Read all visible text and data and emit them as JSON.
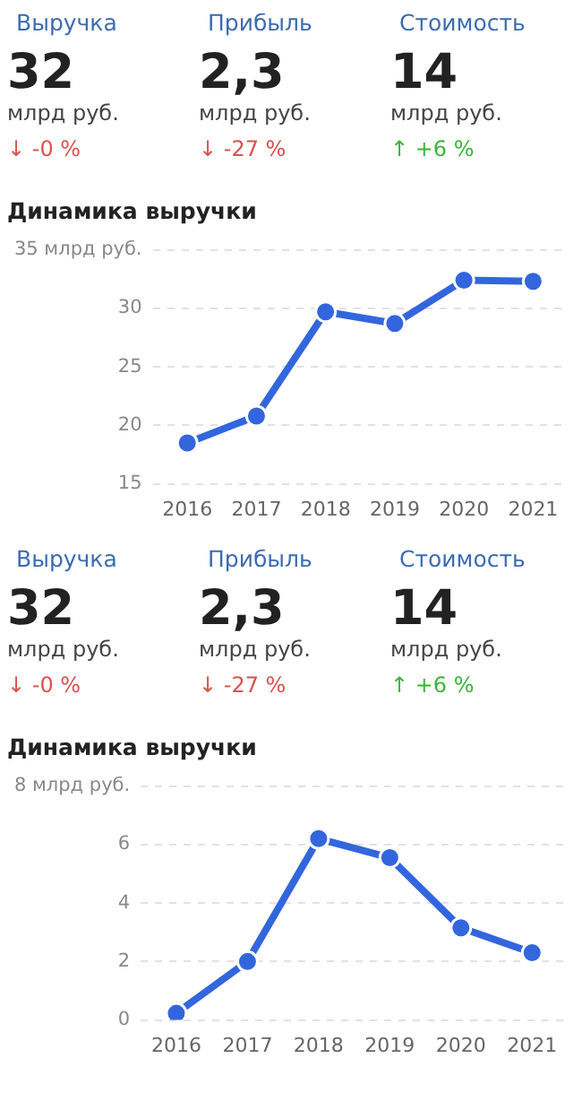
{
  "chart_data": [
    {
      "type": "other",
      "categories": [
        "Выручка",
        "Прибыль",
        "Стоимость"
      ],
      "annotations": [
        "32",
        "млрд руб.",
        "↓ -0 %",
        "2,3",
        "млрд руб.",
        "↓ -27 %",
        "14",
        "млрд руб.",
        "↑ +6 %"
      ],
      "colors": [
        "#d9534f",
        "#d9534f",
        "#3cb43c"
      ]
    },
    {
      "type": "line",
      "title": "Динамика выручки",
      "categories": [
        "2016",
        "2017",
        "2018",
        "2019",
        "2020",
        "2021"
      ],
      "series": [
        {
          "color": "#3366dd",
          "values": [
            18.5,
            20.8,
            29.7,
            28.7,
            32.4,
            32.3
          ]
        }
      ],
      "ylim": [
        15,
        35
      ],
      "yticks": [
        15,
        20,
        25,
        30,
        {
          "value": 35,
          "label": "35 млрд руб."
        }
      ],
      "grid": "y",
      "marker": "circle",
      "line_style": "solid"
    },
    {
      "type": "other",
      "categories": [
        "Выручка",
        "Прибыль",
        "Стоимость"
      ],
      "annotations": [
        "32",
        "млрд руб.",
        "↓ -0 %",
        "2,3",
        "млрд руб.",
        "↓ -27 %",
        "14",
        "млрд руб.",
        "↑ +6 %"
      ],
      "colors": [
        "#d9534f",
        "#d9534f",
        "#3cb43c"
      ]
    },
    {
      "type": "line",
      "title": "Динамика выручки",
      "categories": [
        "2016",
        "2017",
        "2018",
        "2019",
        "2020",
        "2021"
      ],
      "series": [
        {
          "color": "#3366dd",
          "values": [
            0.23,
            2,
            6.2,
            5.55,
            3.15,
            2.3
          ]
        }
      ],
      "ylim": [
        0,
        8
      ],
      "yticks": [
        0,
        2,
        4,
        6,
        {
          "value": 8,
          "label": "8 млрд руб."
        }
      ],
      "grid": "y",
      "marker": "circle",
      "line_style": "solid"
    }
  ]
}
